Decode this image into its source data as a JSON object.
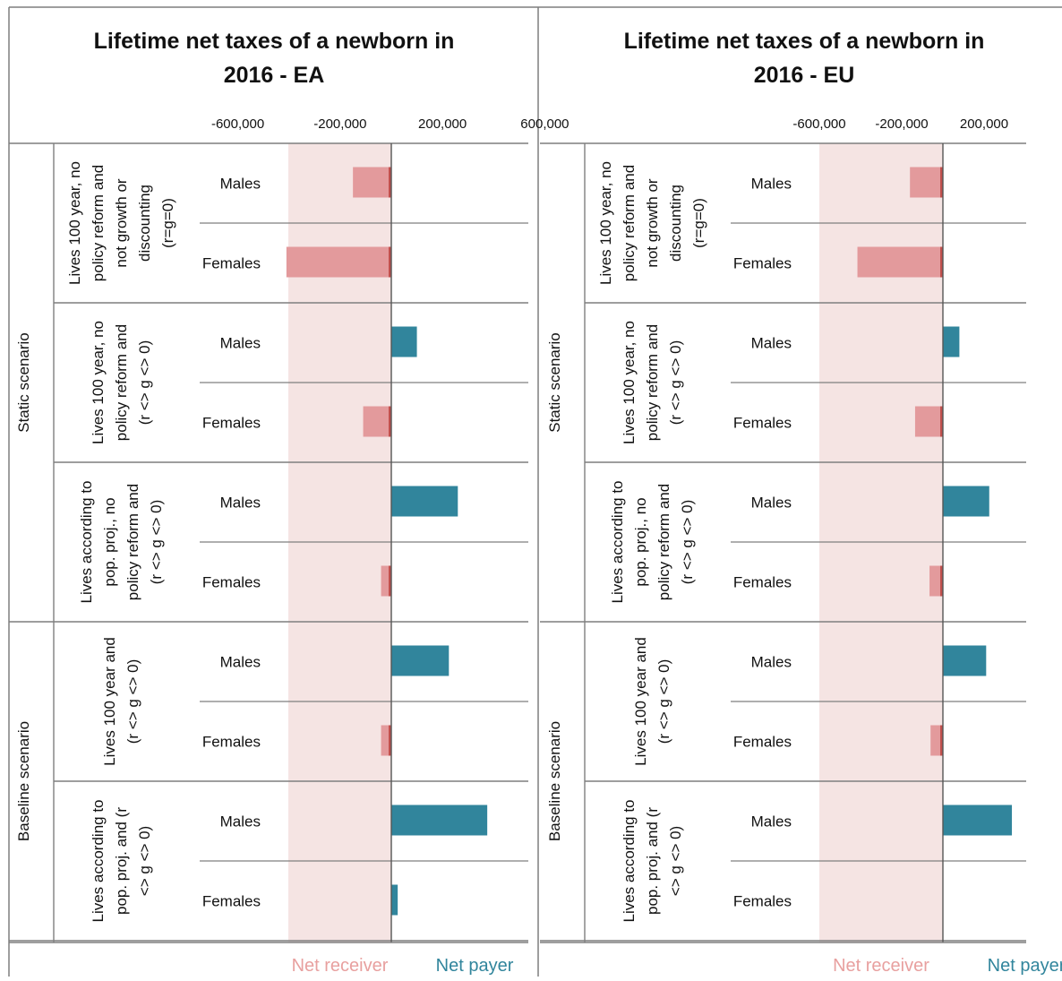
{
  "chart_data": [
    {
      "type": "bar",
      "orientation": "horizontal",
      "title": "Lifetime net taxes of a newborn in 2016 - EA",
      "x_ticks": [
        -600000,
        -200000,
        200000,
        600000
      ],
      "x_tick_labels": [
        "-600,000",
        "-200,000",
        "200,000",
        "600,000"
      ],
      "xlim": [
        -840000,
        760000
      ],
      "shade_range": [
        -600000,
        0
      ],
      "scenarios": [
        {
          "label": "Static scenario",
          "groups": [
            {
              "label": [
                "Lives 100 year, no",
                "policy reform and",
                "not growth or",
                "discounting",
                "(r=g=0)"
              ],
              "bars": [
                {
                  "label": "Males",
                  "value": -150000
                },
                {
                  "label": "Females",
                  "value": -410000
                }
              ]
            },
            {
              "label": [
                "Lives 100 year, no",
                "policy reform and",
                "(r <> g <> 0)"
              ],
              "bars": [
                {
                  "label": "Males",
                  "value": 100000
                },
                {
                  "label": "Females",
                  "value": -110000
                }
              ]
            },
            {
              "label": [
                "Lives according to",
                "pop. proj., no",
                "policy reform and",
                "(r <> g <> 0)"
              ],
              "bars": [
                {
                  "label": "Males",
                  "value": 260000
                },
                {
                  "label": "Females",
                  "value": -40000
                }
              ]
            }
          ]
        },
        {
          "label": "Baseline scenario",
          "groups": [
            {
              "label": [
                "Lives 100 year and",
                "(r <> g <> 0)"
              ],
              "bars": [
                {
                  "label": "Males",
                  "value": 225000
                },
                {
                  "label": "Females",
                  "value": -40000
                }
              ]
            },
            {
              "label": [
                "Lives according to",
                "pop. proj. and  (r",
                "<> g <> 0)"
              ],
              "bars": [
                {
                  "label": "Males",
                  "value": 375000
                },
                {
                  "label": "Females",
                  "value": 25000
                }
              ]
            }
          ]
        }
      ],
      "legend": [
        "Net receiver",
        "Net payer"
      ]
    },
    {
      "type": "bar",
      "orientation": "horizontal",
      "title": "Lifetime net taxes of a newborn in 2016 - EU",
      "x_ticks": [
        -600000,
        -200000,
        200000
      ],
      "x_tick_labels": [
        "-600,000",
        "-200,000",
        "200,000"
      ],
      "xlim": [
        -1000000,
        350000
      ],
      "shade_range": [
        -600000,
        0
      ],
      "scenarios": [
        {
          "label": "Static scenario",
          "groups": [
            {
              "label": [
                "Lives 100 year, no",
                "policy reform and",
                "not growth or",
                "discounting",
                "(r=g=0)"
              ],
              "bars": [
                {
                  "label": "Males",
                  "value": -160000
                },
                {
                  "label": "Females",
                  "value": -415000
                }
              ]
            },
            {
              "label": [
                "Lives 100 year, no",
                "policy reform and",
                "(r <> g <> 0)"
              ],
              "bars": [
                {
                  "label": "Males",
                  "value": 80000
                },
                {
                  "label": "Females",
                  "value": -135000
                }
              ]
            },
            {
              "label": [
                "Lives according to",
                "pop. proj., no",
                "policy reform and",
                "(r <> g <> 0)"
              ],
              "bars": [
                {
                  "label": "Males",
                  "value": 225000
                },
                {
                  "label": "Females",
                  "value": -65000
                }
              ]
            }
          ]
        },
        {
          "label": "Baseline scenario",
          "groups": [
            {
              "label": [
                "Lives 100 year and",
                "(r <> g <> 0)"
              ],
              "bars": [
                {
                  "label": "Males",
                  "value": 210000
                },
                {
                  "label": "Females",
                  "value": -60000
                }
              ]
            },
            {
              "label": [
                "Lives according to",
                "pop. proj. and  (r",
                "<> g <> 0)"
              ],
              "bars": [
                {
                  "label": "Males",
                  "value": 335000
                },
                {
                  "label": "Females",
                  "value": 0
                }
              ]
            }
          ]
        }
      ],
      "legend": [
        "Net receiver",
        "Net payer"
      ]
    }
  ],
  "colors": {
    "net_receiver": "#E39A9C",
    "net_receiver_edge": "#C0504D",
    "net_payer": "#31859C",
    "shade": "#F5E4E3",
    "frame": "#7F7F7F",
    "legend_receiver_text": "#E8A09F",
    "legend_payer_text": "#31859C"
  }
}
